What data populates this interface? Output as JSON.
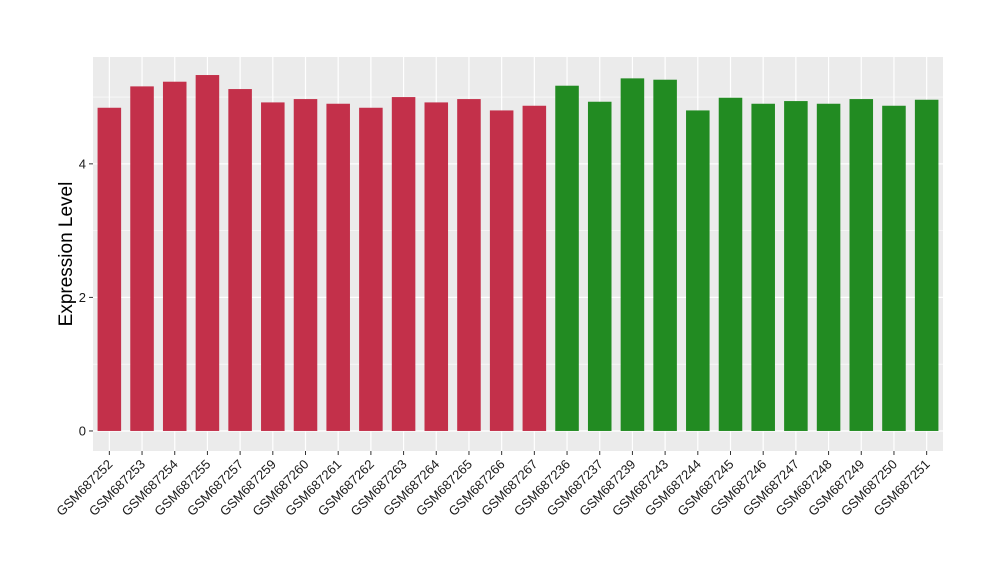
{
  "chart_data": {
    "type": "bar",
    "ylabel": "Expression Level",
    "xlabel": "",
    "ylim": [
      -0.3,
      5.6
    ],
    "yticks": [
      0,
      2,
      4
    ],
    "grid": true,
    "categories": [
      "GSM687252",
      "GSM687253",
      "GSM687254",
      "GSM687255",
      "GSM687257",
      "GSM687259",
      "GSM687260",
      "GSM687261",
      "GSM687262",
      "GSM687263",
      "GSM687264",
      "GSM687265",
      "GSM687266",
      "GSM687267",
      "GSM687236",
      "GSM687237",
      "GSM687239",
      "GSM687243",
      "GSM687244",
      "GSM687245",
      "GSM687246",
      "GSM687247",
      "GSM687248",
      "GSM687249",
      "GSM687250",
      "GSM687251"
    ],
    "values": [
      4.84,
      5.16,
      5.23,
      5.33,
      5.12,
      4.92,
      4.97,
      4.9,
      4.84,
      5.0,
      4.92,
      4.97,
      4.8,
      4.87,
      5.17,
      4.93,
      5.28,
      5.26,
      4.8,
      4.99,
      4.9,
      4.94,
      4.9,
      4.97,
      4.87,
      4.96
    ],
    "group_colors": [
      "#c3304a",
      "#c3304a",
      "#c3304a",
      "#c3304a",
      "#c3304a",
      "#c3304a",
      "#c3304a",
      "#c3304a",
      "#c3304a",
      "#c3304a",
      "#c3304a",
      "#c3304a",
      "#c3304a",
      "#c3304a",
      "#228b22",
      "#228b22",
      "#228b22",
      "#228b22",
      "#228b22",
      "#228b22",
      "#228b22",
      "#228b22",
      "#228b22",
      "#228b22",
      "#228b22",
      "#228b22"
    ],
    "panel_background": "#ebebeb",
    "gridline_color": "#ffffff"
  }
}
